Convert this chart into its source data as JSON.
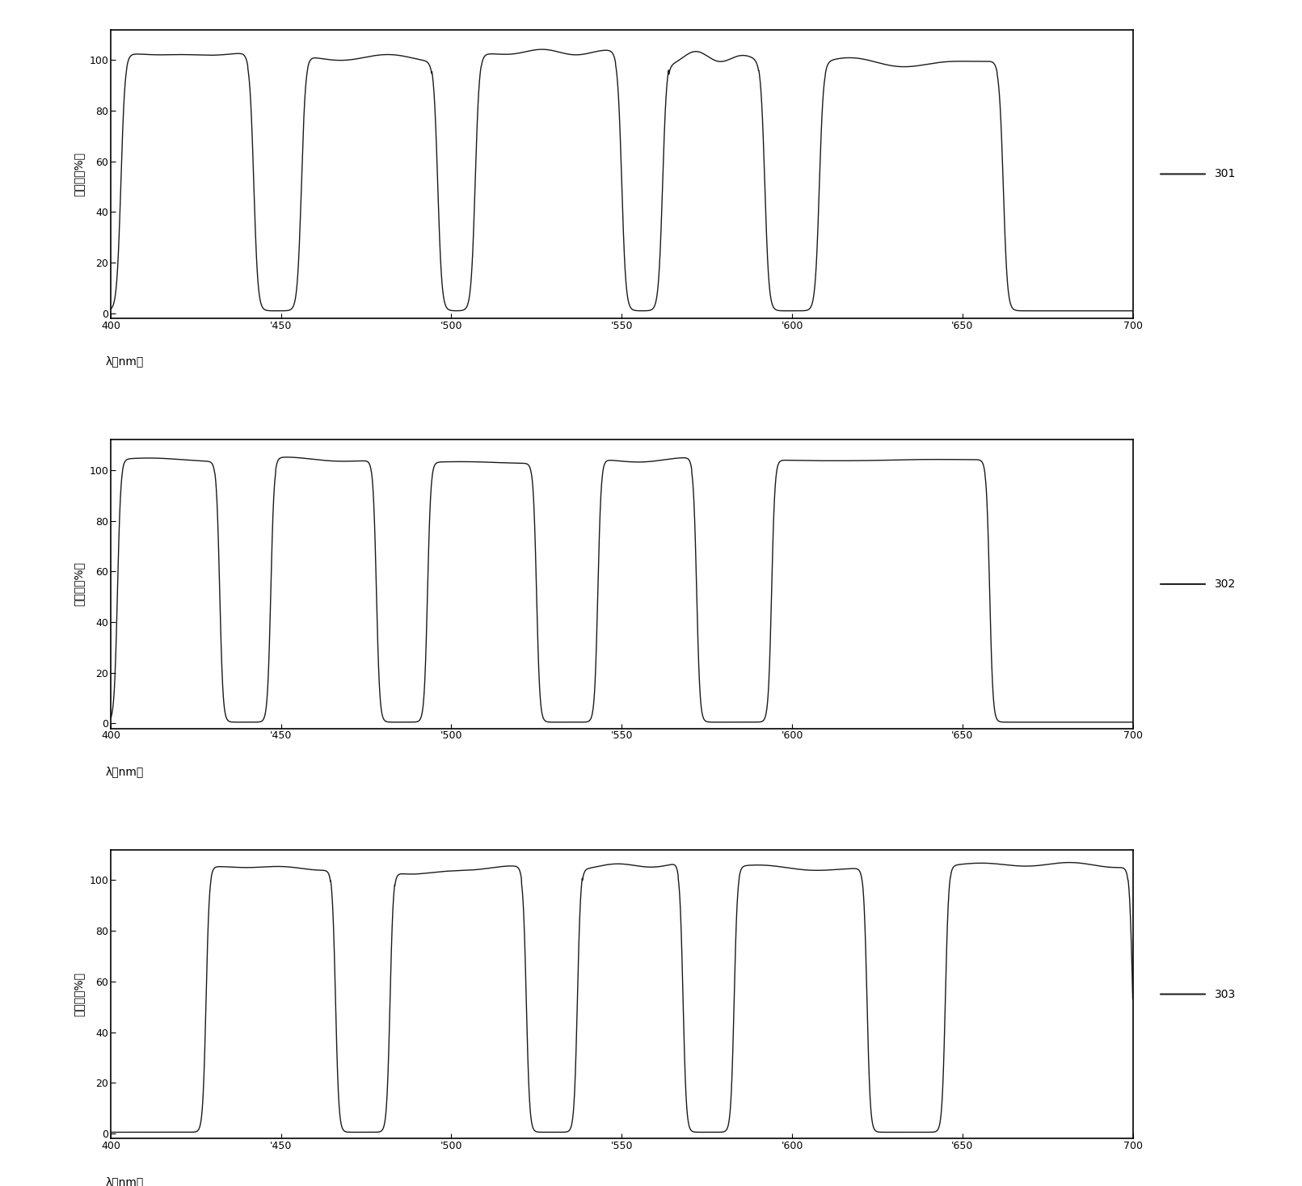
{
  "panels": [
    {
      "label": "301",
      "ylabel": "滤过率（%）",
      "xlabel": "λ（nm）",
      "xlim": [
        400,
        700
      ],
      "ylim": [
        -2,
        112
      ],
      "yticks": [
        0,
        20,
        40,
        60,
        80,
        100
      ],
      "xticks": [
        400,
        450,
        500,
        550,
        600,
        650,
        700
      ],
      "pulses": [
        {
          "start": 403,
          "end": 442,
          "peak": 102,
          "noise_amp": 1.5,
          "noise_freq": 8
        },
        {
          "start": 456,
          "end": 496,
          "peak": 101,
          "noise_amp": 1.0,
          "noise_freq": 6
        },
        {
          "start": 507,
          "end": 550,
          "peak": 103,
          "noise_amp": 1.8,
          "noise_freq": 10
        },
        {
          "start": 562,
          "end": 592,
          "peak": 101,
          "noise_amp": 2.5,
          "noise_freq": 12
        },
        {
          "start": 608,
          "end": 662,
          "peak": 99,
          "noise_amp": 1.2,
          "noise_freq": 7
        }
      ],
      "baseline": 1.0,
      "edge_width": 1.5
    },
    {
      "label": "302",
      "ylabel": "滤过率（%）",
      "xlabel": "λ（nm）",
      "xlim": [
        400,
        700
      ],
      "ylim": [
        -2,
        112
      ],
      "yticks": [
        0,
        20,
        40,
        60,
        80,
        100
      ],
      "xticks": [
        400,
        450,
        500,
        550,
        600,
        650,
        700
      ],
      "pulses": [
        {
          "start": 402,
          "end": 432,
          "peak": 104,
          "noise_amp": 0.6,
          "noise_freq": 5
        },
        {
          "start": 447,
          "end": 478,
          "peak": 104,
          "noise_amp": 0.8,
          "noise_freq": 6
        },
        {
          "start": 493,
          "end": 525,
          "peak": 103,
          "noise_amp": 0.6,
          "noise_freq": 5
        },
        {
          "start": 543,
          "end": 572,
          "peak": 104,
          "noise_amp": 0.9,
          "noise_freq": 7
        },
        {
          "start": 594,
          "end": 658,
          "peak": 104,
          "noise_amp": 0.7,
          "noise_freq": 5
        }
      ],
      "baseline": 0.5,
      "edge_width": 1.2
    },
    {
      "label": "303",
      "ylabel": "滤过率（%）",
      "xlabel": "λ（nm）",
      "xlim": [
        400,
        700
      ],
      "ylim": [
        -2,
        112
      ],
      "yticks": [
        0,
        20,
        40,
        60,
        80,
        100
      ],
      "xticks": [
        400,
        450,
        500,
        550,
        600,
        650,
        700
      ],
      "pulses": [
        {
          "start": 428,
          "end": 466,
          "peak": 105,
          "noise_amp": 1.2,
          "noise_freq": 7
        },
        {
          "start": 482,
          "end": 522,
          "peak": 104,
          "noise_amp": 1.2,
          "noise_freq": 7
        },
        {
          "start": 537,
          "end": 568,
          "peak": 106,
          "noise_amp": 1.5,
          "noise_freq": 8
        },
        {
          "start": 583,
          "end": 622,
          "peak": 105,
          "noise_amp": 1.0,
          "noise_freq": 6
        },
        {
          "start": 645,
          "end": 700,
          "peak": 106,
          "noise_amp": 1.2,
          "noise_freq": 7
        }
      ],
      "baseline": 0.5,
      "edge_width": 1.2
    }
  ],
  "line_color": "#1a1a1a",
  "line_width": 1.0,
  "bg_color": "#ffffff",
  "legend_line_color": "#222222",
  "tick_label_fontsize": 9,
  "axis_label_fontsize": 10
}
